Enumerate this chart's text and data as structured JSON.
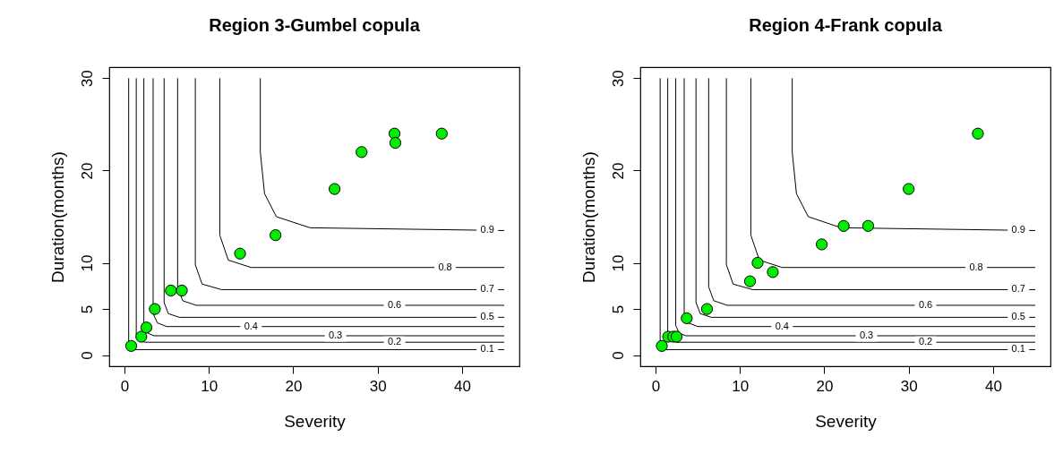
{
  "chart_data": [
    {
      "type": "line",
      "title": "Region 3-Gumbel copula",
      "xlabel": "Severity",
      "ylabel": "Duration(months)",
      "xlim": [
        -1.8,
        46.8
      ],
      "ylim": [
        -1.2,
        31.2
      ],
      "xticks": [
        0,
        10,
        20,
        30,
        40
      ],
      "yticks": [
        0,
        5,
        10,
        20,
        30
      ],
      "grid": false,
      "series": [
        {
          "name": "0.1",
          "color": "#000000",
          "x": [
            0.5,
            0.5,
            0.8,
            45
          ],
          "values": [
            30,
            1.0,
            0.6,
            0.6
          ]
        },
        {
          "name": "0.2",
          "color": "#000000",
          "x": [
            1.4,
            1.4,
            1.7,
            2.4,
            45
          ],
          "values": [
            30,
            2.2,
            1.6,
            1.4,
            1.4
          ]
        },
        {
          "name": "0.3",
          "color": "#000000",
          "x": [
            2.3,
            2.3,
            2.7,
            3.5,
            45
          ],
          "values": [
            30,
            3.2,
            2.4,
            2.1,
            2.1
          ]
        },
        {
          "name": "0.4",
          "color": "#000000",
          "x": [
            3.4,
            3.4,
            3.9,
            5.0,
            45
          ],
          "values": [
            30,
            4.5,
            3.5,
            3.1,
            3.1
          ]
        },
        {
          "name": "0.5",
          "color": "#000000",
          "x": [
            4.7,
            4.7,
            5.2,
            6.5,
            45
          ],
          "values": [
            30,
            5.7,
            4.5,
            4.1,
            4.1
          ]
        },
        {
          "name": "0.6",
          "color": "#000000",
          "x": [
            6.3,
            6.3,
            6.9,
            8.5,
            45
          ],
          "values": [
            30,
            7.4,
            5.9,
            5.4,
            5.4
          ]
        },
        {
          "name": "0.7",
          "color": "#000000",
          "x": [
            8.4,
            8.4,
            9.2,
            11.5,
            45
          ],
          "values": [
            30,
            9.8,
            7.7,
            7.1,
            7.1
          ]
        },
        {
          "name": "0.8",
          "color": "#000000",
          "x": [
            11.3,
            11.3,
            12.3,
            15.0,
            45
          ],
          "values": [
            30,
            13.0,
            10.3,
            9.5,
            9.5
          ]
        },
        {
          "name": "0.9",
          "color": "#000000",
          "x": [
            16.1,
            16.1,
            16.6,
            18.0,
            22,
            45
          ],
          "values": [
            30,
            22,
            17.5,
            15,
            13.8,
            13.5
          ]
        },
        {
          "type": "scatter",
          "marker": "circle",
          "color": "#00ee00",
          "x": [
            0.8,
            2.0,
            2.6,
            3.6,
            5.5,
            6.8,
            13.7,
            17.9,
            24.9,
            28.1,
            32.0,
            32.1,
            37.6
          ],
          "values": [
            1,
            2,
            3,
            5,
            7,
            7,
            11,
            13,
            18,
            22,
            24,
            23,
            24
          ]
        }
      ]
    },
    {
      "type": "line",
      "title": "Region 4-Frank copula",
      "xlabel": "Severity",
      "ylabel": "Duration(months)",
      "xlim": [
        -1.8,
        46.8
      ],
      "ylim": [
        -1.2,
        31.2
      ],
      "xticks": [
        0,
        10,
        20,
        30,
        40
      ],
      "yticks": [
        0,
        5,
        10,
        20,
        30
      ],
      "grid": false,
      "series": [
        {
          "name": "0.1",
          "color": "#000000",
          "x": [
            0.55,
            0.55,
            0.85,
            45
          ],
          "values": [
            30,
            1.0,
            0.6,
            0.6
          ]
        },
        {
          "name": "0.2",
          "color": "#000000",
          "x": [
            1.45,
            1.45,
            1.75,
            2.45,
            45
          ],
          "values": [
            30,
            2.2,
            1.6,
            1.4,
            1.4
          ]
        },
        {
          "name": "0.3",
          "color": "#000000",
          "x": [
            2.4,
            2.4,
            2.8,
            3.6,
            45
          ],
          "values": [
            30,
            3.2,
            2.4,
            2.1,
            2.1
          ]
        },
        {
          "name": "0.4",
          "color": "#000000",
          "x": [
            3.4,
            3.4,
            3.9,
            5.0,
            45
          ],
          "values": [
            30,
            4.5,
            3.5,
            3.1,
            3.1
          ]
        },
        {
          "name": "0.5",
          "color": "#000000",
          "x": [
            4.8,
            4.8,
            5.3,
            6.6,
            45
          ],
          "values": [
            30,
            5.7,
            4.5,
            4.1,
            4.1
          ]
        },
        {
          "name": "0.6",
          "color": "#000000",
          "x": [
            6.3,
            6.3,
            6.9,
            8.5,
            45
          ],
          "values": [
            30,
            7.4,
            5.9,
            5.4,
            5.4
          ]
        },
        {
          "name": "0.7",
          "color": "#000000",
          "x": [
            8.4,
            8.4,
            9.2,
            11.5,
            45
          ],
          "values": [
            30,
            9.8,
            7.7,
            7.1,
            7.1
          ]
        },
        {
          "name": "0.8",
          "color": "#000000",
          "x": [
            11.3,
            11.3,
            12.3,
            15.0,
            45
          ],
          "values": [
            30,
            13.0,
            10.3,
            9.5,
            9.5
          ]
        },
        {
          "name": "0.9",
          "color": "#000000",
          "x": [
            16.2,
            16.2,
            16.7,
            18.1,
            22,
            45
          ],
          "values": [
            30,
            22,
            17.5,
            15,
            13.8,
            13.5
          ]
        },
        {
          "type": "scatter",
          "marker": "circle",
          "color": "#00ee00",
          "x": [
            0.75,
            1.5,
            2.1,
            2.5,
            3.7,
            6.1,
            11.2,
            12.1,
            13.9,
            19.7,
            22.3,
            25.2,
            30.0,
            38.2
          ],
          "values": [
            1,
            2,
            2,
            2,
            4,
            5,
            8,
            10,
            9,
            12,
            14,
            14,
            18,
            24
          ]
        }
      ]
    }
  ]
}
